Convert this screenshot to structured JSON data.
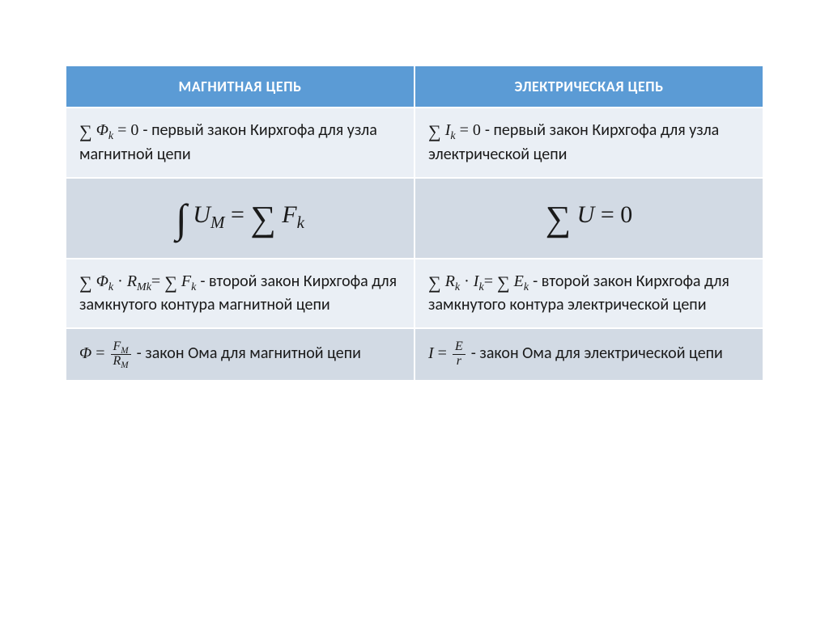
{
  "table": {
    "header_bg": "#5b9bd5",
    "header_fg": "#ffffff",
    "band_light": "#eaeff5",
    "band_grey": "#d2dae4",
    "border_color": "#ffffff",
    "columns": [
      {
        "label": "МАГНИТНАЯ ЦЕПЬ"
      },
      {
        "label": "ЭЛЕКТРИЧЕСКАЯ ЦЕПЬ"
      }
    ],
    "rows": [
      {
        "band": "light",
        "magnetic": {
          "sum_symbol": "∑",
          "formula_var": "Φ",
          "formula_sub": "k",
          "equals_zero": " = 0",
          "desc": " - первый закон Кирхгофа для узла магнитной цепи"
        },
        "electric": {
          "sum_symbol": "∑",
          "formula_var": "I",
          "formula_sub": "k",
          "equals_zero": " = 0",
          "desc": " - первый закон Кирхгофа для узла электрической цепи"
        }
      },
      {
        "band": "grey",
        "center": true,
        "magnetic": {
          "integral": "∫",
          "lhs_var": "U",
          "lhs_sub": "M",
          "eq": " = ",
          "sum": "∑",
          "rhs_var": "F",
          "rhs_sub": "k"
        },
        "electric": {
          "sum": "∑",
          "var": "U",
          "eq_zero": " = 0"
        }
      },
      {
        "band": "light",
        "magnetic": {
          "sum": "∑",
          "var1": "Φ",
          "sub1": "k",
          "dot": " · ",
          "var2": "R",
          "sub2": "Mk",
          "eq": "= ",
          "sum2": "∑",
          "var3": "F",
          "sub3": "k",
          "desc": " - второй закон Кирхгофа для замкнутого контура магнитной цепи"
        },
        "electric": {
          "sum": "∑",
          "var1": "R",
          "sub1": "k",
          "dot": " · ",
          "var2": "I",
          "sub2": "k",
          "eq": "= ",
          "sum2": "∑",
          "var3": "E",
          "sub3": "k",
          "desc": " - второй закон Кирхгофа для замкнутого контура электрической цепи"
        }
      },
      {
        "band": "grey",
        "magnetic": {
          "lhs": "Φ",
          "eq": " = ",
          "num_var": "F",
          "num_sub": "M",
          "den_var": "R",
          "den_sub": "M",
          "desc": " - закон Ома для магнитной цепи"
        },
        "electric": {
          "lhs": "I",
          "eq": " = ",
          "num_var": "E",
          "den_var": "r",
          "desc": " - закон Ома для электрической цепи"
        }
      }
    ]
  }
}
